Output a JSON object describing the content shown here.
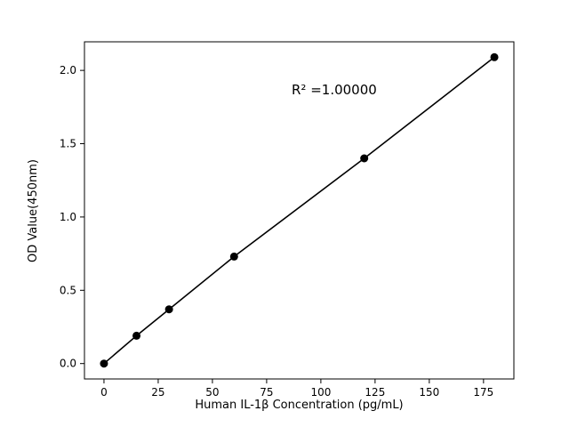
{
  "figure": {
    "background_color": "#ffffff"
  },
  "chart_data": {
    "type": "scatter",
    "x": [
      0,
      15,
      30,
      60,
      120,
      180
    ],
    "y": [
      0.0,
      0.19,
      0.37,
      0.73,
      1.4,
      2.09
    ],
    "title": "",
    "xlabel": "Human IL-1β  Concentration (pg/mL)",
    "ylabel": "OD Value(450nm)",
    "annotation": "R² =1.00000",
    "xlim": [
      -9,
      189
    ],
    "ylim": [
      -0.105,
      2.195
    ],
    "xtick_values": [
      0,
      25,
      50,
      75,
      100,
      125,
      150,
      175
    ],
    "xtick_labels": [
      "0",
      "25",
      "50",
      "75",
      "100",
      "125",
      "150",
      "175"
    ],
    "ytick_values": [
      0.0,
      0.5,
      1.0,
      1.5,
      2.0
    ],
    "ytick_labels": [
      "0.0",
      "0.5",
      "1.0",
      "1.5",
      "2.0"
    ],
    "line_color": "#000000",
    "marker_color": "#000000",
    "axis_color": "#000000",
    "marker": "circle",
    "grid": false,
    "legend_position": "none"
  }
}
